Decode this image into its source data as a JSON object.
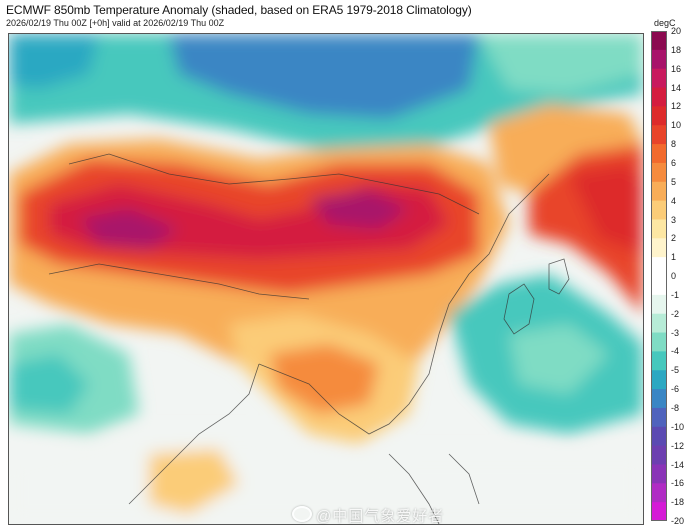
{
  "header": {
    "title": "ECMWF 850mb Temperature Anomaly (shaded, based on ERA5 1979-2018 Climatology)",
    "subtitle": "2026/02/19 Thu 00Z [+0h] valid at 2026/02/19 Thu 00Z"
  },
  "legend": {
    "unit": "degC",
    "ticks": [
      "20",
      "18",
      "16",
      "14",
      "12",
      "10",
      "8",
      "6",
      "5",
      "4",
      "3",
      "2",
      "1",
      "0",
      "-1",
      "-2",
      "-3",
      "-4",
      "-5",
      "-6",
      "-8",
      "-10",
      "-12",
      "-14",
      "-16",
      "-18",
      "-20"
    ],
    "colors": [
      "#8b0a50",
      "#a8136a",
      "#c81a5e",
      "#d41d3f",
      "#dd2b2b",
      "#e8442a",
      "#f26a2d",
      "#f58b3e",
      "#f8ad58",
      "#fbcc78",
      "#fde7a3",
      "#fff4cc",
      "#ffffff",
      "#ffffff",
      "#e6f6ee",
      "#b7ecd7",
      "#7fdcc4",
      "#46c8bd",
      "#2ca8c2",
      "#3a86c4",
      "#4f63bd",
      "#5b4ab2",
      "#6d3fb0",
      "#8a34b7",
      "#b02cc4",
      "#d51bd6"
    ]
  },
  "watermark": {
    "text": "@中国气象爱好者"
  }
}
